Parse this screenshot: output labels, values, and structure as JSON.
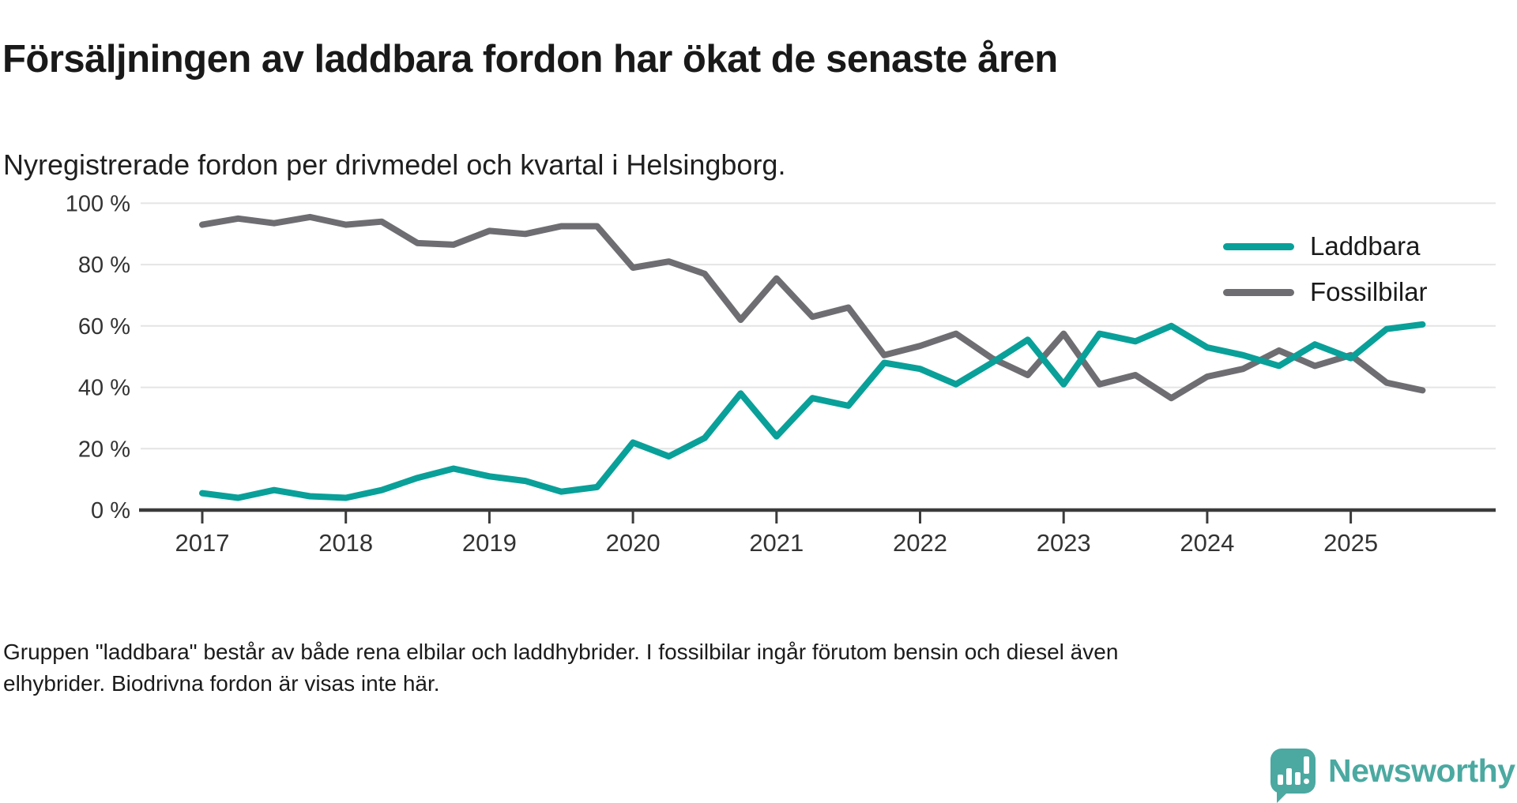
{
  "header": {
    "title": "Försäljningen av laddbara fordon har ökat de senaste åren",
    "subtitle": "Nyregistrerade fordon per drivmedel och kvartal i Helsingborg."
  },
  "legend": [
    {
      "label": "Laddbara",
      "color": "#09a099"
    },
    {
      "label": "Fossilbilar",
      "color": "#6e6e72"
    }
  ],
  "chart_data": {
    "type": "line",
    "title": "Försäljningen av laddbara fordon har ökat de senaste åren",
    "subtitle": "Nyregistrerade fordon per drivmedel och kvartal i Helsingborg.",
    "unit": "%",
    "ylim": [
      0,
      100
    ],
    "grid": "horizontal",
    "legend_position": "top-right",
    "x_period": "quarterly",
    "x_start": "2017 Q1",
    "x_end": "2025 Q3",
    "x_ticks": [
      "2017",
      "2018",
      "2019",
      "2020",
      "2021",
      "2022",
      "2023",
      "2024",
      "2025"
    ],
    "y_ticks": [
      {
        "value": 100,
        "label": "100 %"
      },
      {
        "value": 80,
        "label": "80 %"
      },
      {
        "value": 60,
        "label": "60 %"
      },
      {
        "value": 40,
        "label": "40 %"
      },
      {
        "value": 20,
        "label": "20 %"
      },
      {
        "value": 0,
        "label": "0 %"
      }
    ],
    "series": [
      {
        "name": "Laddbara",
        "color": "#09a099",
        "values": [
          5.5,
          4,
          6.5,
          4.5,
          4,
          6.5,
          10.5,
          13.5,
          11,
          9.5,
          6,
          7.5,
          22,
          17.5,
          23.5,
          38,
          24,
          36.5,
          34,
          48,
          46,
          41,
          48,
          55.5,
          41,
          57.5,
          55,
          60,
          53,
          50.5,
          47,
          54,
          49.5,
          59,
          60.5
        ]
      },
      {
        "name": "Fossilbilar",
        "color": "#6e6e72",
        "values": [
          93,
          95,
          93.5,
          95.5,
          93,
          94,
          87,
          86.5,
          91,
          90,
          92.5,
          92.5,
          79,
          81,
          77,
          62,
          75.5,
          63,
          66,
          50.5,
          53.5,
          57.5,
          49.5,
          44,
          57.5,
          41,
          44,
          36.5,
          43.5,
          46,
          52,
          47,
          50.5,
          41.5,
          39
        ]
      }
    ]
  },
  "footnote_lines": [
    "Gruppen \"laddbara\" består av både rena elbilar och laddhybrider. I fossilbilar ingår förutom bensin och diesel även",
    "elhybrider. Biodrivna fordon är visas inte här."
  ],
  "logo": {
    "text": "Newsworthy",
    "color": "#4ba9a1"
  }
}
